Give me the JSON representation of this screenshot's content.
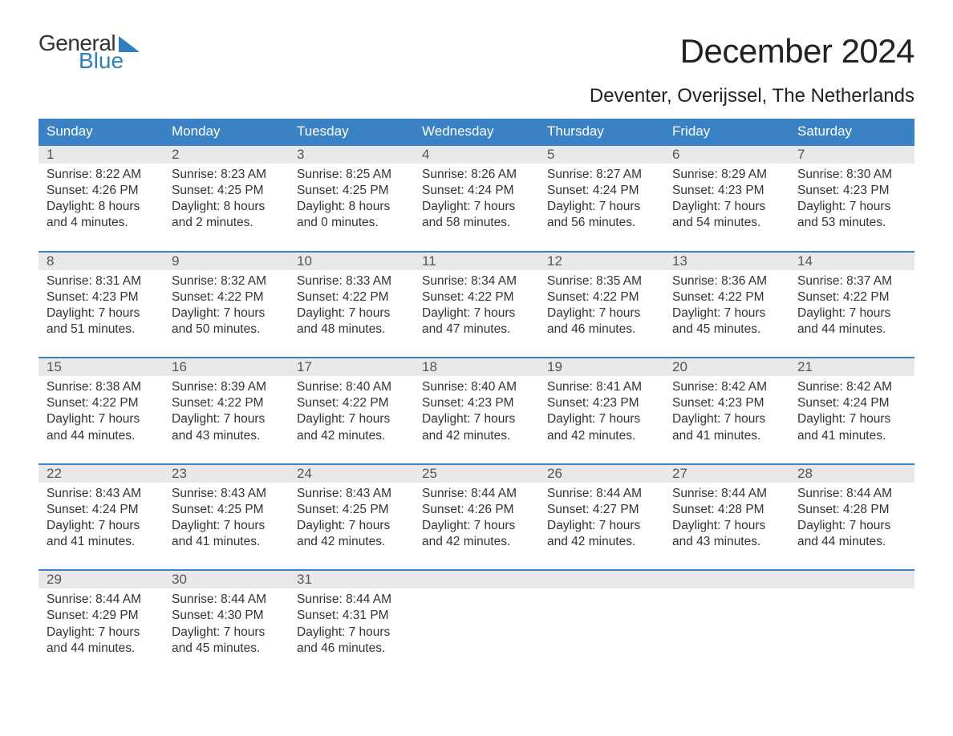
{
  "logo": {
    "word1": "General",
    "word2": "Blue"
  },
  "title": "December 2024",
  "location": "Deventer, Overijssel, The Netherlands",
  "colors": {
    "header_bg": "#3b82c4",
    "header_text": "#ffffff",
    "daynum_bg": "#e9e9e9",
    "week_border": "#3b82c4",
    "logo_blue": "#2d7fbf",
    "body_text": "#333333",
    "bg": "#ffffff"
  },
  "weekdays": [
    "Sunday",
    "Monday",
    "Tuesday",
    "Wednesday",
    "Thursday",
    "Friday",
    "Saturday"
  ],
  "weeks": [
    [
      {
        "n": "1",
        "sunrise": "Sunrise: 8:22 AM",
        "sunset": "Sunset: 4:26 PM",
        "d1": "Daylight: 8 hours",
        "d2": "and 4 minutes."
      },
      {
        "n": "2",
        "sunrise": "Sunrise: 8:23 AM",
        "sunset": "Sunset: 4:25 PM",
        "d1": "Daylight: 8 hours",
        "d2": "and 2 minutes."
      },
      {
        "n": "3",
        "sunrise": "Sunrise: 8:25 AM",
        "sunset": "Sunset: 4:25 PM",
        "d1": "Daylight: 8 hours",
        "d2": "and 0 minutes."
      },
      {
        "n": "4",
        "sunrise": "Sunrise: 8:26 AM",
        "sunset": "Sunset: 4:24 PM",
        "d1": "Daylight: 7 hours",
        "d2": "and 58 minutes."
      },
      {
        "n": "5",
        "sunrise": "Sunrise: 8:27 AM",
        "sunset": "Sunset: 4:24 PM",
        "d1": "Daylight: 7 hours",
        "d2": "and 56 minutes."
      },
      {
        "n": "6",
        "sunrise": "Sunrise: 8:29 AM",
        "sunset": "Sunset: 4:23 PM",
        "d1": "Daylight: 7 hours",
        "d2": "and 54 minutes."
      },
      {
        "n": "7",
        "sunrise": "Sunrise: 8:30 AM",
        "sunset": "Sunset: 4:23 PM",
        "d1": "Daylight: 7 hours",
        "d2": "and 53 minutes."
      }
    ],
    [
      {
        "n": "8",
        "sunrise": "Sunrise: 8:31 AM",
        "sunset": "Sunset: 4:23 PM",
        "d1": "Daylight: 7 hours",
        "d2": "and 51 minutes."
      },
      {
        "n": "9",
        "sunrise": "Sunrise: 8:32 AM",
        "sunset": "Sunset: 4:22 PM",
        "d1": "Daylight: 7 hours",
        "d2": "and 50 minutes."
      },
      {
        "n": "10",
        "sunrise": "Sunrise: 8:33 AM",
        "sunset": "Sunset: 4:22 PM",
        "d1": "Daylight: 7 hours",
        "d2": "and 48 minutes."
      },
      {
        "n": "11",
        "sunrise": "Sunrise: 8:34 AM",
        "sunset": "Sunset: 4:22 PM",
        "d1": "Daylight: 7 hours",
        "d2": "and 47 minutes."
      },
      {
        "n": "12",
        "sunrise": "Sunrise: 8:35 AM",
        "sunset": "Sunset: 4:22 PM",
        "d1": "Daylight: 7 hours",
        "d2": "and 46 minutes."
      },
      {
        "n": "13",
        "sunrise": "Sunrise: 8:36 AM",
        "sunset": "Sunset: 4:22 PM",
        "d1": "Daylight: 7 hours",
        "d2": "and 45 minutes."
      },
      {
        "n": "14",
        "sunrise": "Sunrise: 8:37 AM",
        "sunset": "Sunset: 4:22 PM",
        "d1": "Daylight: 7 hours",
        "d2": "and 44 minutes."
      }
    ],
    [
      {
        "n": "15",
        "sunrise": "Sunrise: 8:38 AM",
        "sunset": "Sunset: 4:22 PM",
        "d1": "Daylight: 7 hours",
        "d2": "and 44 minutes."
      },
      {
        "n": "16",
        "sunrise": "Sunrise: 8:39 AM",
        "sunset": "Sunset: 4:22 PM",
        "d1": "Daylight: 7 hours",
        "d2": "and 43 minutes."
      },
      {
        "n": "17",
        "sunrise": "Sunrise: 8:40 AM",
        "sunset": "Sunset: 4:22 PM",
        "d1": "Daylight: 7 hours",
        "d2": "and 42 minutes."
      },
      {
        "n": "18",
        "sunrise": "Sunrise: 8:40 AM",
        "sunset": "Sunset: 4:23 PM",
        "d1": "Daylight: 7 hours",
        "d2": "and 42 minutes."
      },
      {
        "n": "19",
        "sunrise": "Sunrise: 8:41 AM",
        "sunset": "Sunset: 4:23 PM",
        "d1": "Daylight: 7 hours",
        "d2": "and 42 minutes."
      },
      {
        "n": "20",
        "sunrise": "Sunrise: 8:42 AM",
        "sunset": "Sunset: 4:23 PM",
        "d1": "Daylight: 7 hours",
        "d2": "and 41 minutes."
      },
      {
        "n": "21",
        "sunrise": "Sunrise: 8:42 AM",
        "sunset": "Sunset: 4:24 PM",
        "d1": "Daylight: 7 hours",
        "d2": "and 41 minutes."
      }
    ],
    [
      {
        "n": "22",
        "sunrise": "Sunrise: 8:43 AM",
        "sunset": "Sunset: 4:24 PM",
        "d1": "Daylight: 7 hours",
        "d2": "and 41 minutes."
      },
      {
        "n": "23",
        "sunrise": "Sunrise: 8:43 AM",
        "sunset": "Sunset: 4:25 PM",
        "d1": "Daylight: 7 hours",
        "d2": "and 41 minutes."
      },
      {
        "n": "24",
        "sunrise": "Sunrise: 8:43 AM",
        "sunset": "Sunset: 4:25 PM",
        "d1": "Daylight: 7 hours",
        "d2": "and 42 minutes."
      },
      {
        "n": "25",
        "sunrise": "Sunrise: 8:44 AM",
        "sunset": "Sunset: 4:26 PM",
        "d1": "Daylight: 7 hours",
        "d2": "and 42 minutes."
      },
      {
        "n": "26",
        "sunrise": "Sunrise: 8:44 AM",
        "sunset": "Sunset: 4:27 PM",
        "d1": "Daylight: 7 hours",
        "d2": "and 42 minutes."
      },
      {
        "n": "27",
        "sunrise": "Sunrise: 8:44 AM",
        "sunset": "Sunset: 4:28 PM",
        "d1": "Daylight: 7 hours",
        "d2": "and 43 minutes."
      },
      {
        "n": "28",
        "sunrise": "Sunrise: 8:44 AM",
        "sunset": "Sunset: 4:28 PM",
        "d1": "Daylight: 7 hours",
        "d2": "and 44 minutes."
      }
    ],
    [
      {
        "n": "29",
        "sunrise": "Sunrise: 8:44 AM",
        "sunset": "Sunset: 4:29 PM",
        "d1": "Daylight: 7 hours",
        "d2": "and 44 minutes."
      },
      {
        "n": "30",
        "sunrise": "Sunrise: 8:44 AM",
        "sunset": "Sunset: 4:30 PM",
        "d1": "Daylight: 7 hours",
        "d2": "and 45 minutes."
      },
      {
        "n": "31",
        "sunrise": "Sunrise: 8:44 AM",
        "sunset": "Sunset: 4:31 PM",
        "d1": "Daylight: 7 hours",
        "d2": "and 46 minutes."
      },
      {
        "n": "",
        "sunrise": "",
        "sunset": "",
        "d1": "",
        "d2": ""
      },
      {
        "n": "",
        "sunrise": "",
        "sunset": "",
        "d1": "",
        "d2": ""
      },
      {
        "n": "",
        "sunrise": "",
        "sunset": "",
        "d1": "",
        "d2": ""
      },
      {
        "n": "",
        "sunrise": "",
        "sunset": "",
        "d1": "",
        "d2": ""
      }
    ]
  ]
}
